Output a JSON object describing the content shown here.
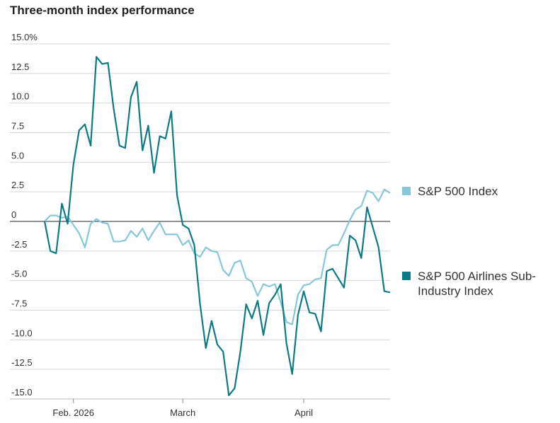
{
  "chart_data": {
    "type": "line",
    "title": "Three-month index performance",
    "categories": [
      null,
      null,
      null,
      null,
      null,
      "Feb. 2026",
      null,
      null,
      null,
      null,
      null,
      null,
      null,
      null,
      null,
      null,
      null,
      null,
      null,
      null,
      null,
      null,
      null,
      null,
      "March",
      null,
      null,
      null,
      null,
      null,
      null,
      null,
      null,
      null,
      null,
      null,
      null,
      null,
      null,
      null,
      null,
      null,
      null,
      null,
      null,
      "April",
      null,
      null,
      null,
      null,
      null,
      null,
      null,
      null,
      null,
      null,
      null,
      null,
      null,
      null,
      null
    ],
    "series": [
      {
        "name": "S&P 500 Index",
        "color": "#86c7d8",
        "values": [
          0,
          0.5,
          0.5,
          0.3,
          0.4,
          -0.3,
          -1.0,
          -2.2,
          -0.2,
          0.2,
          -0.1,
          -0.2,
          -1.7,
          -1.7,
          -1.6,
          -0.8,
          -1.3,
          -0.6,
          -1.6,
          -0.8,
          -0.1,
          -1.1,
          -1.1,
          -1.1,
          -2.0,
          -1.6,
          -2.7,
          -3.0,
          -2.2,
          -2.5,
          -2.6,
          -4.1,
          -4.6,
          -3.5,
          -3.3,
          -4.8,
          -5.1,
          -6.3,
          -5.3,
          -5.5,
          -5.3,
          -6.8,
          -8.5,
          -8.7,
          -6.2,
          -5.4,
          -5.3,
          -4.9,
          -4.8,
          -2.4,
          -2.0,
          -2.0,
          -1.0,
          0.1,
          1.0,
          1.3,
          2.6,
          2.4,
          1.7,
          2.7,
          2.4
        ]
      },
      {
        "name": "S&P 500 Airlines Sub-Industry Index",
        "color": "#0e7b84",
        "values": [
          0,
          -2.5,
          -2.7,
          1.5,
          -0.2,
          4.8,
          7.7,
          8.2,
          6.4,
          13.9,
          13.3,
          13.4,
          9.5,
          6.4,
          6.2,
          10.5,
          11.8,
          6.0,
          8.1,
          4.1,
          7.2,
          7.0,
          9.3,
          2.2,
          -0.3,
          -0.6,
          -2.0,
          -7.0,
          -10.7,
          -8.4,
          -10.4,
          -11.0,
          -14.7,
          -14.1,
          -11.0,
          -7.0,
          -8.2,
          -6.7,
          -9.6,
          -6.9,
          -6.2,
          -5.3,
          -10.3,
          -12.9,
          -7.9,
          -5.9,
          -7.7,
          -7.8,
          -9.3,
          -4.2,
          -4.0,
          -4.8,
          -5.6,
          -1.2,
          -1.6,
          -3.1,
          1.2,
          -0.5,
          -2.2,
          -5.9,
          -6.0
        ]
      }
    ],
    "ylim": [
      -15,
      15
    ],
    "yticks": [
      {
        "value": 15,
        "label": "15.0%"
      },
      12.5,
      {
        "value": 10,
        "label": "10.0"
      },
      7.5,
      {
        "value": 5,
        "label": "5.0"
      },
      2.5,
      0,
      -2.5,
      {
        "value": -5,
        "label": "-5.0"
      },
      -7.5,
      {
        "value": -10,
        "label": "-10.0"
      },
      -12.5,
      {
        "value": -15,
        "label": "-15.0"
      }
    ],
    "grid": true
  }
}
